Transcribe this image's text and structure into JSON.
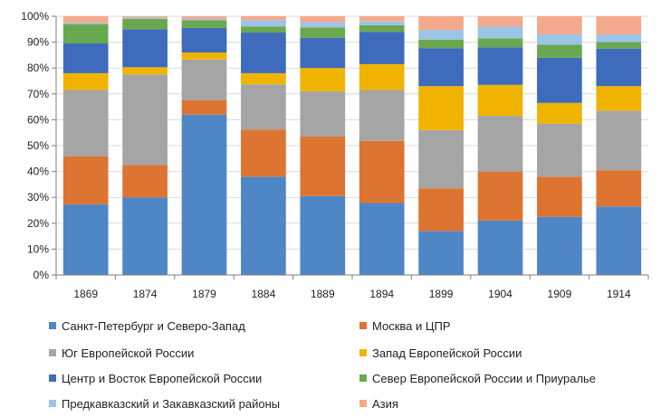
{
  "chart_data": {
    "type": "bar",
    "stacked": true,
    "title": "",
    "xlabel": "",
    "ylabel": "",
    "ylim": [
      0,
      100
    ],
    "yticks": [
      0,
      10,
      20,
      30,
      40,
      50,
      60,
      70,
      80,
      90,
      100
    ],
    "ytick_labels": [
      "0%",
      "10%",
      "20%",
      "30%",
      "40%",
      "50%",
      "60%",
      "70%",
      "80%",
      "90%",
      "100%"
    ],
    "grid": true,
    "legend_position": "bottom",
    "categories": [
      "1869",
      "1874",
      "1879",
      "1884",
      "1889",
      "1894",
      "1899",
      "1904",
      "1909",
      "1914"
    ],
    "series": [
      {
        "name": "Санкт-Петербург и Северо-Запад",
        "color": "#4F86C6",
        "values": [
          27.3,
          30.0,
          62.0,
          38.0,
          30.5,
          27.8,
          17.0,
          21.0,
          22.5,
          26.5
        ]
      },
      {
        "name": "Москва и ЦПР",
        "color": "#DE7431",
        "values": [
          18.5,
          12.5,
          5.5,
          18.2,
          23.0,
          24.0,
          16.5,
          19.0,
          15.5,
          14.0
        ]
      },
      {
        "name": "Юг Европейской России",
        "color": "#A5A5A5",
        "values": [
          25.7,
          35.0,
          15.8,
          17.5,
          17.5,
          19.7,
          22.5,
          21.5,
          20.5,
          23.0
        ]
      },
      {
        "name": "Запад Европейской России",
        "color": "#F0B400",
        "values": [
          6.5,
          2.8,
          2.7,
          4.3,
          9.0,
          10.0,
          17.0,
          12.0,
          8.0,
          9.5
        ]
      },
      {
        "name": "Центр и Восток Европейской России",
        "color": "#3F6BBD",
        "values": [
          11.5,
          14.7,
          9.5,
          15.7,
          11.7,
          12.5,
          14.7,
          14.5,
          17.5,
          14.5
        ]
      },
      {
        "name": "Север Европейской России и Приуралье",
        "color": "#6AA84F",
        "values": [
          7.5,
          4.0,
          3.0,
          2.3,
          4.0,
          2.5,
          3.3,
          3.5,
          5.0,
          2.5
        ]
      },
      {
        "name": "Предкавказский и Закавказский районы",
        "color": "#9DC3E6",
        "values": [
          0.5,
          0.5,
          0.5,
          2.5,
          2.0,
          1.5,
          3.7,
          4.5,
          4.0,
          3.0
        ]
      },
      {
        "name": "Азия",
        "color": "#F4A98C",
        "values": [
          2.5,
          0.5,
          1.0,
          1.5,
          2.3,
          2.0,
          5.3,
          4.0,
          7.0,
          7.0
        ]
      }
    ]
  }
}
